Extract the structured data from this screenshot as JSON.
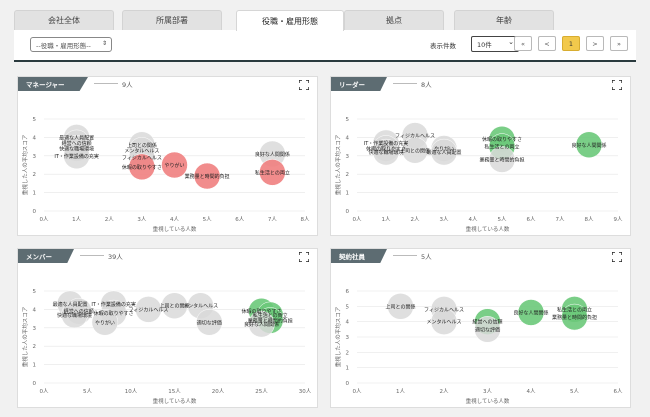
{
  "tabs": [
    {
      "label": "会社全体",
      "active": false
    },
    {
      "label": "所属部署",
      "active": false
    },
    {
      "label": "役職・雇用形態",
      "active": true
    },
    {
      "label": "拠点",
      "active": false
    },
    {
      "label": "年齢",
      "active": false
    }
  ],
  "filter": {
    "selected": "--役職・雇用形態--"
  },
  "pagination": {
    "per_page_label": "表示件数",
    "per_page_value": "10件",
    "first": "«",
    "prev": "<",
    "current": "1",
    "next": ">",
    "last": "»"
  },
  "colors": {
    "gray": "#d9d9d9",
    "red": "#f08080",
    "green": "#6cc97a",
    "header": "#5d6c72"
  },
  "chart_data": [
    {
      "type": "scatter",
      "title": "マネージャー",
      "count": "9人",
      "xlabel": "重視している人数",
      "ylabel": "重視した人の平均スコア",
      "xlim": [
        0,
        8
      ],
      "ylim": [
        0,
        5
      ],
      "xticks": [
        "0人",
        "1人",
        "2人",
        "3人",
        "4人",
        "5人",
        "6人",
        "7人",
        "8人"
      ],
      "yticks": [
        "0",
        "1",
        "2",
        "3",
        "4",
        "5"
      ],
      "points": [
        {
          "label": "最適な人員配置",
          "x": 1,
          "y": 4.0,
          "color": "gray"
        },
        {
          "label": "経営への信頼",
          "x": 1,
          "y": 3.7,
          "color": "gray"
        },
        {
          "label": "快適な職場環境",
          "x": 1,
          "y": 3.4,
          "color": "gray"
        },
        {
          "label": "IT・作業設備の充実",
          "x": 1,
          "y": 3.0,
          "color": "gray"
        },
        {
          "label": "上司との関係",
          "x": 3,
          "y": 3.6,
          "color": "gray"
        },
        {
          "label": "メンタルヘルス",
          "x": 3,
          "y": 3.3,
          "color": "gray"
        },
        {
          "label": "フィジカルヘルス",
          "x": 3,
          "y": 2.9,
          "color": "gray"
        },
        {
          "label": "休暇の取りやすさ",
          "x": 3,
          "y": 2.4,
          "color": "red"
        },
        {
          "label": "良好な人間関係",
          "x": 7,
          "y": 3.1,
          "color": "gray"
        },
        {
          "label": "やりがい",
          "x": 4,
          "y": 2.5,
          "color": "red"
        },
        {
          "label": "業務量と時間的負担",
          "x": 5,
          "y": 1.9,
          "color": "red"
        },
        {
          "label": "私生活との両立",
          "x": 7,
          "y": 2.1,
          "color": "red"
        }
      ]
    },
    {
      "type": "scatter",
      "title": "リーダー",
      "count": "8人",
      "xlabel": "重視している人数",
      "ylabel": "重視した人の平均スコア",
      "xlim": [
        0,
        9
      ],
      "ylim": [
        0,
        5
      ],
      "xticks": [
        "0人",
        "1人",
        "2人",
        "3人",
        "4人",
        "5人",
        "6人",
        "7人",
        "8人",
        "9人"
      ],
      "yticks": [
        "0",
        "1",
        "2",
        "3",
        "4",
        "5"
      ],
      "points": [
        {
          "label": "フィジカルヘルス",
          "x": 2,
          "y": 4.1,
          "color": "gray"
        },
        {
          "label": "IT・作業設備の充実",
          "x": 1,
          "y": 3.7,
          "color": "gray"
        },
        {
          "label": "休暇の取りやすさ",
          "x": 1,
          "y": 3.4,
          "color": "gray"
        },
        {
          "label": "快適な職場環境",
          "x": 1,
          "y": 3.2,
          "color": "gray"
        },
        {
          "label": "上司との関係",
          "x": 2,
          "y": 3.3,
          "color": "gray"
        },
        {
          "label": "やりがい",
          "x": 3,
          "y": 3.4,
          "color": "gray"
        },
        {
          "label": "最適な人員配置",
          "x": 3,
          "y": 3.2,
          "color": "gray"
        },
        {
          "label": "休暇の取りやすさ",
          "x": 5,
          "y": 3.9,
          "color": "green"
        },
        {
          "label": "私生活との両立",
          "x": 5,
          "y": 3.5,
          "color": "green"
        },
        {
          "label": "業務量と時間的負担",
          "x": 5,
          "y": 2.8,
          "color": "gray"
        },
        {
          "label": "良好な人間関係",
          "x": 8,
          "y": 3.6,
          "color": "green"
        }
      ]
    },
    {
      "type": "scatter",
      "title": "メンバー",
      "count": "39人",
      "xlabel": "重視している人数",
      "ylabel": "重視した人の平均スコア",
      "xlim": [
        0,
        30
      ],
      "ylim": [
        0,
        5
      ],
      "xticks": [
        "0人",
        "5人",
        "10人",
        "15人",
        "20人",
        "25人",
        "30人"
      ],
      "yticks": [
        "0",
        "1",
        "2",
        "3",
        "4",
        "5"
      ],
      "points": [
        {
          "label": "最適な人員配置",
          "x": 3,
          "y": 4.3,
          "color": "gray"
        },
        {
          "label": "経営への信頼",
          "x": 4,
          "y": 3.9,
          "color": "gray"
        },
        {
          "label": "快適な職場環境",
          "x": 3.5,
          "y": 3.7,
          "color": "gray"
        },
        {
          "label": "IT・作業設備の充実",
          "x": 8,
          "y": 4.3,
          "color": "gray"
        },
        {
          "label": "休暇の取りやすさ",
          "x": 8,
          "y": 3.8,
          "color": "gray"
        },
        {
          "label": "やりがい",
          "x": 7,
          "y": 3.3,
          "color": "gray"
        },
        {
          "label": "フィジカルヘルス",
          "x": 12,
          "y": 4.0,
          "color": "gray"
        },
        {
          "label": "上司との関係",
          "x": 15,
          "y": 4.2,
          "color": "gray"
        },
        {
          "label": "メンタルヘルス",
          "x": 18,
          "y": 4.2,
          "color": "gray"
        },
        {
          "label": "適切な評価",
          "x": 19,
          "y": 3.3,
          "color": "gray"
        },
        {
          "label": "休暇の取りやすさ",
          "x": 25,
          "y": 3.9,
          "color": "green"
        },
        {
          "label": "私生活との両立",
          "x": 26,
          "y": 3.7,
          "color": "green"
        },
        {
          "label": "業務量と時間的負担",
          "x": 26,
          "y": 3.4,
          "color": "green"
        },
        {
          "label": "良好な人間関係",
          "x": 25,
          "y": 3.2,
          "color": "gray"
        }
      ]
    },
    {
      "type": "scatter",
      "title": "契約社員",
      "count": "5人",
      "xlabel": "重視している人数",
      "ylabel": "重視した人の平均スコア",
      "xlim": [
        0,
        6
      ],
      "ylim": [
        0,
        6
      ],
      "xticks": [
        "0人",
        "1人",
        "2人",
        "3人",
        "4人",
        "5人",
        "6人"
      ],
      "yticks": [
        "0",
        "1",
        "2",
        "3",
        "4",
        "5",
        "6"
      ],
      "points": [
        {
          "label": "上司との関係",
          "x": 1,
          "y": 5.0,
          "color": "gray"
        },
        {
          "label": "フィジカルヘルス",
          "x": 2,
          "y": 4.8,
          "color": "gray"
        },
        {
          "label": "メンタルヘルス",
          "x": 2,
          "y": 4.0,
          "color": "gray"
        },
        {
          "label": "経営への信頼",
          "x": 3,
          "y": 4.0,
          "color": "green"
        },
        {
          "label": "適切な評価",
          "x": 3,
          "y": 3.5,
          "color": "gray"
        },
        {
          "label": "良好な人間関係",
          "x": 4,
          "y": 4.6,
          "color": "green"
        },
        {
          "label": "私生活との両立",
          "x": 5,
          "y": 4.8,
          "color": "green"
        },
        {
          "label": "業務量と時間的負担",
          "x": 5,
          "y": 4.3,
          "color": "green"
        }
      ]
    }
  ]
}
